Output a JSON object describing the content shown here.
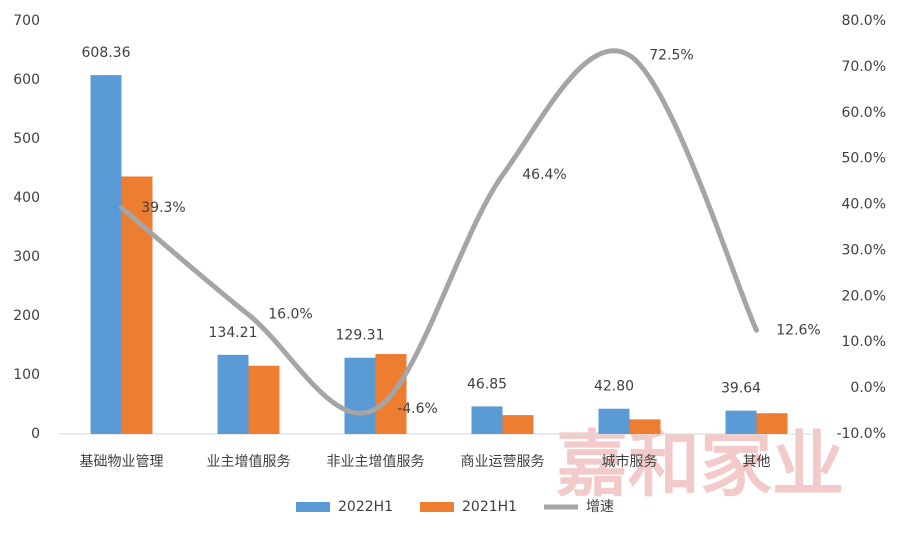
{
  "chart_data": {
    "type": "bar-line",
    "categories": [
      "基础物业管理",
      "业主增值服务",
      "非业主增值服务",
      "商业运营服务",
      "城市服务",
      "其他"
    ],
    "series": [
      {
        "name": "2022H1",
        "type": "bar",
        "color": "#5b9bd5",
        "values": [
          608.36,
          134.21,
          129.31,
          46.85,
          42.8,
          39.64
        ],
        "value_labels": [
          "608.36",
          "134.21",
          "129.31",
          "46.85",
          "42.80",
          "39.64"
        ]
      },
      {
        "name": "2021H1",
        "type": "bar",
        "color": "#ed7d31",
        "values": [
          436.5,
          115.7,
          135.5,
          32.0,
          24.8,
          35.2
        ]
      },
      {
        "name": "增速",
        "type": "line",
        "axis": "y2",
        "color": "#a5a5a5",
        "values": [
          39.3,
          16.0,
          -4.6,
          46.4,
          72.5,
          12.6
        ],
        "value_labels": [
          "39.3%",
          "16.0%",
          "-4.6%",
          "46.4%",
          "72.5%",
          "12.6%"
        ]
      }
    ],
    "ylim": [
      0,
      700
    ],
    "yticks": [
      0,
      100,
      200,
      300,
      400,
      500,
      600,
      700
    ],
    "y2lim": [
      -10,
      80
    ],
    "y2ticks": [
      {
        "value": -10,
        "label": "-10.0%"
      },
      {
        "value": 0,
        "label": "0.0%"
      },
      {
        "value": 10,
        "label": "10.0%"
      },
      {
        "value": 20,
        "label": "20.0%"
      },
      {
        "value": 30,
        "label": "30.0%"
      },
      {
        "value": 40,
        "label": "40.0%"
      },
      {
        "value": 50,
        "label": "50.0%"
      },
      {
        "value": 60,
        "label": "60.0%"
      },
      {
        "value": 70,
        "label": "70.0%"
      },
      {
        "value": 80,
        "label": "80.0%"
      }
    ],
    "grid": false,
    "legend": "bottom",
    "watermark": "嘉和家业"
  }
}
